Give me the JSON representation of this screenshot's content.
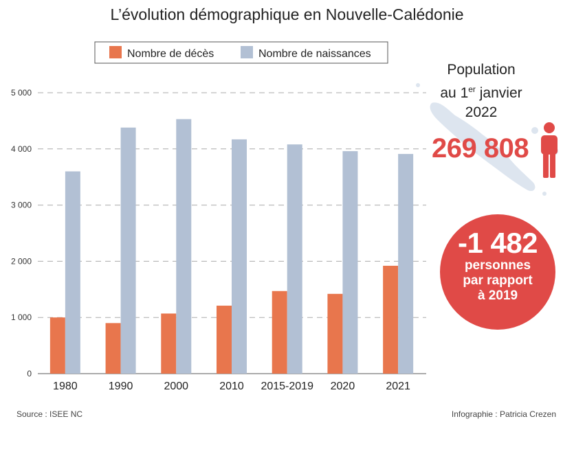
{
  "title": "L’évolution démographique en Nouvelle-Calédonie",
  "population": {
    "label_line1": "Population",
    "label_line2_pre": "au 1",
    "label_line2_sup": "er",
    "label_line2_post": " janvier",
    "label_line3": "2022",
    "value": "269 808"
  },
  "difference": {
    "value": "-1 482",
    "line1": "personnes",
    "line2": "par rapport",
    "line3": "à 2019"
  },
  "footer": {
    "source": "Source : ISEE NC",
    "credit": "Infographie : Patricia Crezen"
  },
  "colors": {
    "deaths": "#e8764d",
    "births": "#b2c0d4",
    "accent": "#e04a47"
  },
  "chart_data": {
    "type": "bar",
    "title": "L’évolution démographique en Nouvelle-Calédonie",
    "xlabel": "",
    "ylabel": "",
    "categories": [
      "1980",
      "1990",
      "2000",
      "2010",
      "2015-2019",
      "2020",
      "2021"
    ],
    "series": [
      {
        "name": "Nombre de décès",
        "values": [
          1000,
          900,
          1070,
          1210,
          1470,
          1420,
          1920
        ]
      },
      {
        "name": "Nombre de naissances",
        "values": [
          3600,
          4380,
          4530,
          4170,
          4080,
          3960,
          3910
        ]
      }
    ],
    "ylim": [
      0,
      5000
    ],
    "yticks": [
      0,
      1000,
      2000,
      3000,
      4000,
      5000
    ],
    "ytick_labels": [
      "0",
      "1 000",
      "2 000",
      "3 000",
      "4 000",
      "5 000"
    ],
    "grid": true,
    "legend_position": "top-center"
  }
}
